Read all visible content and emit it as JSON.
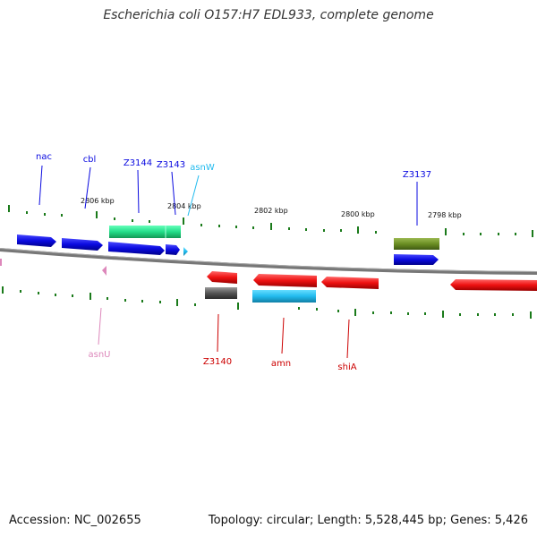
{
  "title": "Escherichia coli O157:H7 EDL933, complete genome",
  "footer": {
    "accession": "Accession: NC_002655",
    "summary": "Topology: circular; Length: 5,528,445 bp; Genes: 5,426"
  },
  "kbp_labels": [
    "2806 kbp",
    "2804 kbp",
    "2802 kbp",
    "2800 kbp",
    "2798 kbp"
  ],
  "genes": {
    "nac": "nac",
    "cbl": "cbl",
    "z3144": "Z3144",
    "z3143": "Z3143",
    "asnW": "asnW",
    "z3137": "Z3137",
    "asnU": "asnU",
    "z3140": "Z3140",
    "amn": "amn",
    "shiA": "shiA"
  },
  "colors": {
    "blue": "#0a0ae0",
    "green": "#22dd88",
    "cyan": "#22bbee",
    "olive": "#6b8e23",
    "red": "#ee1111",
    "gray": "#555555",
    "pink": "#dd88bb",
    "tick": "#1a7a1a",
    "backbone": "#777777"
  }
}
